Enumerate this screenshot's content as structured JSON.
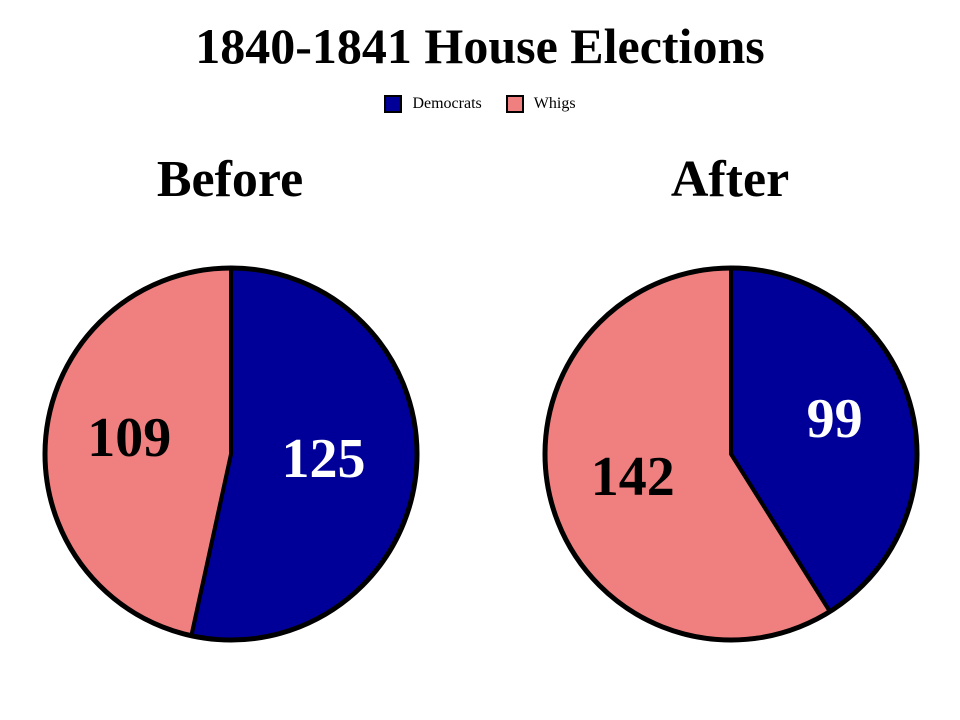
{
  "chart_data": {
    "type": "pie",
    "title": "1840-1841 House Elections",
    "legend": {
      "placement": "top-center",
      "entries": [
        {
          "name": "Democrats",
          "color": "#000099"
        },
        {
          "name": "Whigs",
          "color": "#F08080"
        }
      ]
    },
    "charts": [
      {
        "title": "Before",
        "slices": [
          {
            "name": "Democrats",
            "value": 125,
            "color": "#000099",
            "label_color": "#ffffff"
          },
          {
            "name": "Whigs",
            "value": 109,
            "color": "#F08080",
            "label_color": "#000000"
          }
        ]
      },
      {
        "title": "After",
        "slices": [
          {
            "name": "Democrats",
            "value": 99,
            "color": "#000099",
            "label_color": "#ffffff"
          },
          {
            "name": "Whigs",
            "value": 142,
            "color": "#F08080",
            "label_color": "#000000"
          }
        ]
      }
    ]
  }
}
